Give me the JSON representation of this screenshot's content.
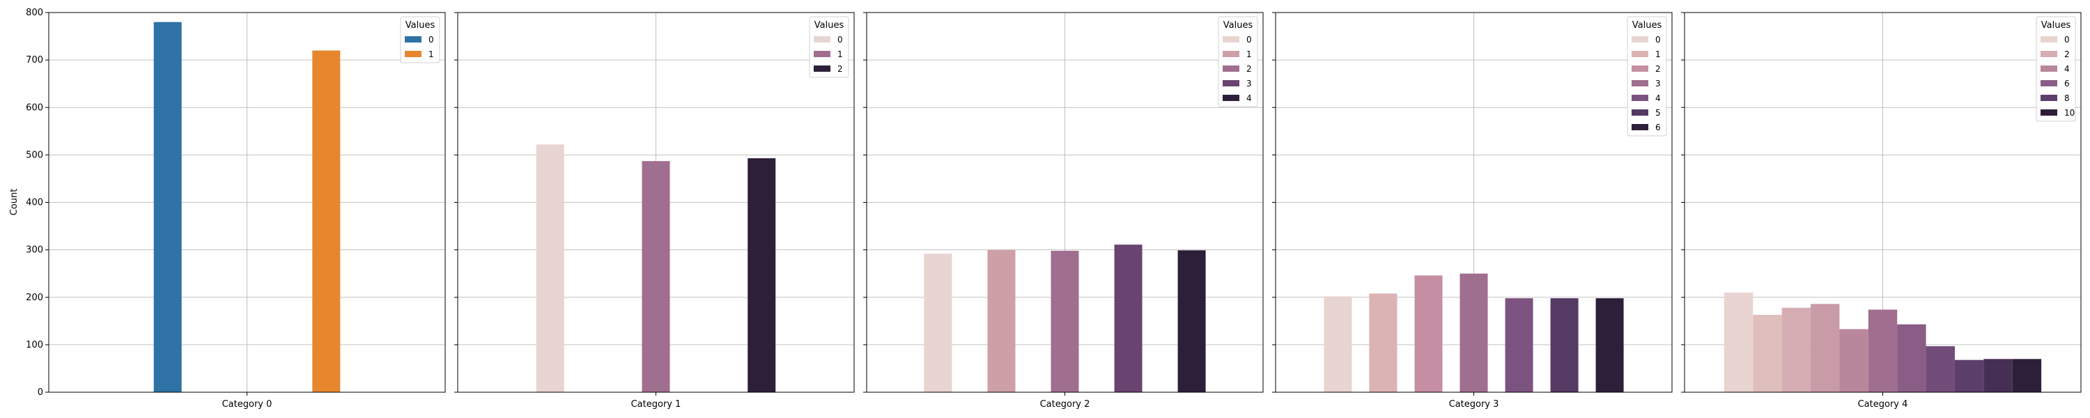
{
  "chart_data": {
    "type": "bar",
    "ylabel": "Count",
    "ylim": [
      0,
      800
    ],
    "yticks": [
      0,
      100,
      200,
      300,
      400,
      500,
      600,
      700,
      800
    ],
    "grid": true,
    "legend_title": "Values",
    "legend_placement": "top-right",
    "panels": [
      {
        "category": "Category 0",
        "hue_levels": [
          0,
          1
        ],
        "legend_entries": [
          "0",
          "1"
        ],
        "bar_colors": [
          "#2f72a6",
          "#e6872e"
        ],
        "values": [
          780,
          720
        ]
      },
      {
        "category": "Category 1",
        "hue_levels": [
          0,
          1,
          2
        ],
        "legend_entries": [
          "0",
          "1",
          "2"
        ],
        "bar_colors": [
          "#e8d4d1",
          "#a06e8e",
          "#2d1f39"
        ],
        "values": [
          522,
          487,
          493
        ]
      },
      {
        "category": "Category 2",
        "hue_levels": [
          0,
          1,
          2,
          3,
          4
        ],
        "legend_entries": [
          "0",
          "1",
          "2",
          "3",
          "4"
        ],
        "bar_colors": [
          "#e8d4d1",
          "#cda0a8",
          "#a06e8e",
          "#6a4470",
          "#2d1f39"
        ],
        "values": [
          292,
          300,
          298,
          311,
          299
        ]
      },
      {
        "category": "Category 3",
        "hue_levels": [
          0,
          1,
          2,
          3,
          4,
          5,
          6
        ],
        "legend_entries": [
          "0",
          "1",
          "2",
          "3",
          "4",
          "5",
          "6"
        ],
        "bar_colors": [
          "#e8d4d1",
          "#dcb3b4",
          "#c58ea2",
          "#a06e8e",
          "#7c5380",
          "#553a64",
          "#2d1f39"
        ],
        "values": [
          202,
          208,
          246,
          250,
          198,
          198,
          198
        ]
      },
      {
        "category": "Category 4",
        "hue_levels": [
          0,
          1,
          2,
          3,
          4,
          5,
          6,
          7,
          8,
          9,
          10
        ],
        "legend_entries": [
          "0",
          "2",
          "4",
          "6",
          "8",
          "10"
        ],
        "bar_colors": [
          "#e8d4d1",
          "#dfbfbe",
          "#d5adb2",
          "#c99ba7",
          "#b9879b",
          "#a06e8e",
          "#895d85",
          "#724c79",
          "#5c3e6a",
          "#452f55",
          "#2d1f39"
        ],
        "values": [
          210,
          163,
          178,
          186,
          133,
          174,
          143,
          97,
          68,
          70,
          70
        ]
      }
    ]
  }
}
